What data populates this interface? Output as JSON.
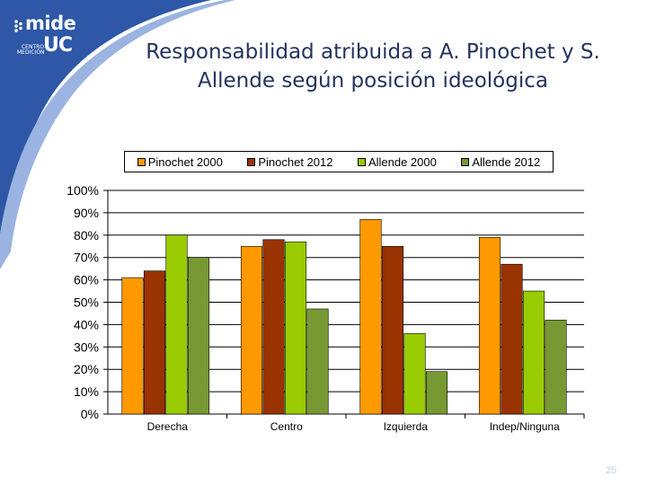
{
  "slide": {
    "title": "Responsabilidad atribuida a A. Pinochet y S. Allende según posición ideológica",
    "page_number": "25",
    "logo": {
      "mide": "mide",
      "uc": "UC",
      "centro": "CENTRO MEDICIÓN"
    }
  },
  "colors": {
    "background": "#ffffff",
    "accent_blue": "#24335e",
    "pinochet_2000": "#ff9900",
    "pinochet_2012": "#993300",
    "allende_2000": "#99cc00",
    "allende_2012": "#779933"
  },
  "chart_data": {
    "type": "bar",
    "title": "",
    "xlabel": "",
    "ylabel": "",
    "ylim": [
      0,
      100
    ],
    "yticks": [
      "0%",
      "10%",
      "20%",
      "30%",
      "40%",
      "50%",
      "60%",
      "70%",
      "80%",
      "90%",
      "100%"
    ],
    "grid": true,
    "legend": "top",
    "categories": [
      "Derecha",
      "Centro",
      "Izquierda",
      "Indep/Ninguna"
    ],
    "series": [
      {
        "name": "Pinochet 2000",
        "color": "#ff9900",
        "values": [
          61,
          75,
          87,
          79
        ]
      },
      {
        "name": "Pinochet 2012",
        "color": "#993300",
        "values": [
          64,
          78,
          75,
          67
        ]
      },
      {
        "name": "Allende 2000",
        "color": "#99cc00",
        "values": [
          80,
          77,
          36,
          55
        ]
      },
      {
        "name": "Allende 2012",
        "color": "#779933",
        "values": [
          70,
          47,
          19,
          42
        ]
      }
    ]
  }
}
